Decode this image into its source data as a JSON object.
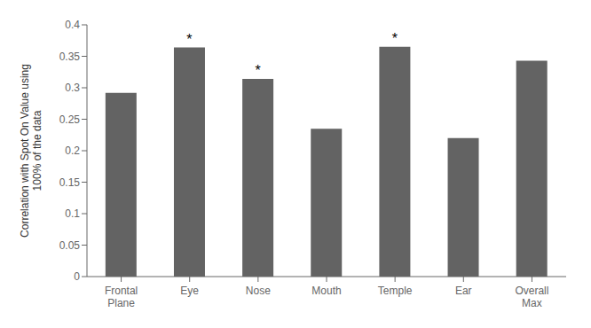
{
  "chart_data": {
    "type": "bar",
    "categories": [
      "Frontal\nPlane",
      "Eye",
      "Nose",
      "Mouth",
      "Temple",
      "Ear",
      "Overall\nMax"
    ],
    "values": [
      0.292,
      0.364,
      0.314,
      0.235,
      0.365,
      0.22,
      0.343
    ],
    "color": "#636363",
    "ylabel": "Correlation with Spot On Value using\n100% of the data",
    "ylim": [
      0,
      0.4
    ],
    "yticks": [
      0,
      0.05,
      0.1,
      0.15,
      0.2,
      0.25,
      0.3,
      0.35,
      0.4
    ],
    "grid": false,
    "annotations": [
      {
        "category": "Eye",
        "text": "*"
      },
      {
        "category": "Nose",
        "text": "*"
      },
      {
        "category": "Temple",
        "text": "*"
      }
    ]
  }
}
